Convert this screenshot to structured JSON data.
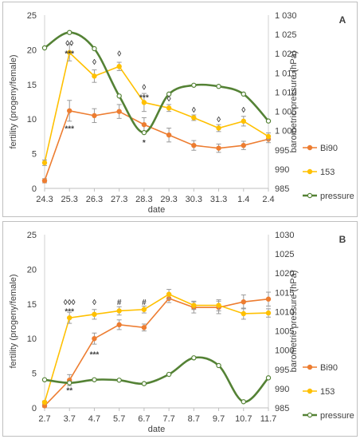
{
  "chart_data": [
    {
      "panel_label": "A",
      "type": "line",
      "xlabel": "date",
      "ylabel": "fertility (progeny/female)",
      "y2label": "barometric pressure (hPa)",
      "categories": [
        "24.3",
        "25.3",
        "26.3",
        "27.3",
        "28.3",
        "29.3",
        "30.3",
        "31.3",
        "1.4",
        "2.4"
      ],
      "ylim": [
        0,
        25
      ],
      "y_ticks": [
        "0",
        "5",
        "10",
        "15",
        "20",
        "25"
      ],
      "y2lim": [
        985,
        1030
      ],
      "y2_ticks": [
        "985",
        "990",
        "995",
        "1 000",
        "1 005",
        "1 010",
        "1 015",
        "1 020",
        "1 025",
        "1 030"
      ],
      "legend_position": "right",
      "series": [
        {
          "name": "Bi90",
          "color": "#ED7D31",
          "axis": "left",
          "smooth": false,
          "values": [
            1.1,
            11.2,
            10.5,
            11.1,
            9.2,
            7.7,
            6.2,
            5.8,
            6.2,
            7.1
          ],
          "errors": [
            0.3,
            1.5,
            1.0,
            1.0,
            1.0,
            1.0,
            0.7,
            0.6,
            0.6,
            0.5
          ]
        },
        {
          "name": "153",
          "color": "#FFC000",
          "axis": "left",
          "smooth": false,
          "values": [
            3.7,
            19.6,
            16.2,
            17.6,
            12.4,
            11.6,
            10.2,
            8.7,
            9.7,
            7.5
          ],
          "errors": [
            0.4,
            1.2,
            0.9,
            0.6,
            1.3,
            0.5,
            0.4,
            0.5,
            0.7,
            0.5
          ]
        },
        {
          "name": "pressure",
          "color": "#548235",
          "axis": "right",
          "smooth": true,
          "values": [
            1021.5,
            1025.5,
            1021.3,
            1009.0,
            999.5,
            1009.5,
            1011.8,
            1011.5,
            1009.5,
            1002.5
          ],
          "errors": []
        }
      ],
      "annotations": [
        {
          "x": "25.3",
          "y": 21.0,
          "text": "◊◊"
        },
        {
          "x": "25.3",
          "y": 19.5,
          "text": "***"
        },
        {
          "x": "26.3",
          "y": 18.3,
          "text": "◊"
        },
        {
          "x": "27.3",
          "y": 19.5,
          "text": "◊"
        },
        {
          "x": "28.3",
          "y": 14.7,
          "text": "◊"
        },
        {
          "x": "28.3",
          "y": 13.2,
          "text": "***"
        },
        {
          "x": "29.3",
          "y": 13.0,
          "text": "◊"
        },
        {
          "x": "30.3",
          "y": 11.4,
          "text": "◊"
        },
        {
          "x": "31.3",
          "y": 10.0,
          "text": "◊"
        },
        {
          "x": "1.4",
          "y": 11.4,
          "text": "◊"
        },
        {
          "x": "25.3",
          "y": 8.7,
          "text": "***"
        },
        {
          "x": "28.3",
          "y": 6.7,
          "text": "*"
        }
      ]
    },
    {
      "panel_label": "B",
      "type": "line",
      "xlabel": "date",
      "ylabel": "fertility (progeny/female)",
      "y2label": "barometric pressure (hPa)",
      "categories": [
        "2.7",
        "3.7",
        "4.7",
        "5.7",
        "6.7",
        "7.7",
        "8.7",
        "9.7",
        "10.7",
        "11.7"
      ],
      "ylim": [
        0,
        25
      ],
      "y_ticks": [
        "0",
        "5",
        "10",
        "15",
        "20",
        "25"
      ],
      "y2lim": [
        985,
        1030
      ],
      "y2_ticks": [
        "985",
        "990",
        "995",
        "1000",
        "1005",
        "1010",
        "1015",
        "1020",
        "1025",
        "1030"
      ],
      "legend_position": "right",
      "series": [
        {
          "name": "Bi90",
          "color": "#ED7D31",
          "axis": "left",
          "smooth": false,
          "values": [
            0.3,
            4.0,
            10.0,
            12.0,
            11.6,
            15.8,
            14.5,
            14.5,
            15.3,
            15.7
          ],
          "errors": [
            0.2,
            0.8,
            0.8,
            0.7,
            0.5,
            0.6,
            0.8,
            0.9,
            1.0,
            1.0
          ]
        },
        {
          "name": "153",
          "color": "#FFC000",
          "axis": "left",
          "smooth": false,
          "values": [
            0.8,
            13.0,
            13.5,
            14.0,
            14.2,
            16.4,
            14.8,
            14.8,
            13.6,
            13.7
          ],
          "errors": [
            0.2,
            0.8,
            0.7,
            0.6,
            0.5,
            0.7,
            0.6,
            0.8,
            0.8,
            0.6
          ]
        },
        {
          "name": "pressure",
          "color": "#548235",
          "axis": "right",
          "smooth": true,
          "values": [
            992.3,
            991.5,
            992.3,
            992.2,
            991.3,
            993.7,
            998.0,
            996.0,
            986.6,
            992.8
          ],
          "errors": []
        }
      ],
      "annotations": [
        {
          "x": "3.7",
          "y": 15.3,
          "text": "◊◊◊"
        },
        {
          "x": "3.7",
          "y": 14.0,
          "text": "***"
        },
        {
          "x": "4.7",
          "y": 15.3,
          "text": "◊"
        },
        {
          "x": "5.7",
          "y": 15.3,
          "text": "#"
        },
        {
          "x": "6.7",
          "y": 15.3,
          "text": "#"
        },
        {
          "x": "4.7",
          "y": 7.8,
          "text": "***"
        },
        {
          "x": "3.7",
          "y": 2.6,
          "text": "**"
        }
      ]
    }
  ]
}
